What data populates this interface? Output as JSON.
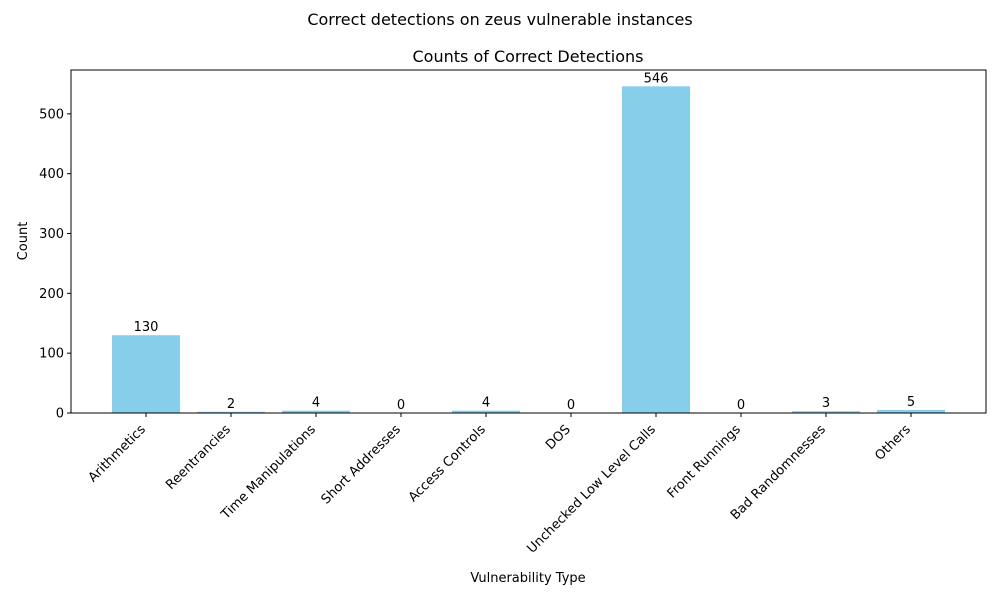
{
  "suptitle": "Correct detections on zeus vulnerable instances",
  "chart_data": {
    "type": "bar",
    "title": "Counts of Correct Detections",
    "xlabel": "Vulnerability Type",
    "ylabel": "Count",
    "categories": [
      "Arithmetics",
      "Reentrancies",
      "Time Manipulations",
      "Short Addresses",
      "Access Controls",
      "DOS",
      "Unchecked Low Level Calls",
      "Front Runnings",
      "Bad Randomnesses",
      "Others"
    ],
    "values": [
      130,
      2,
      4,
      0,
      4,
      0,
      546,
      0,
      3,
      5
    ],
    "ylim": [
      0,
      573.3
    ],
    "yticks": [
      0,
      100,
      200,
      300,
      400,
      500
    ],
    "bar_color": "#87CEEB",
    "grid": false,
    "data_labels": true
  }
}
